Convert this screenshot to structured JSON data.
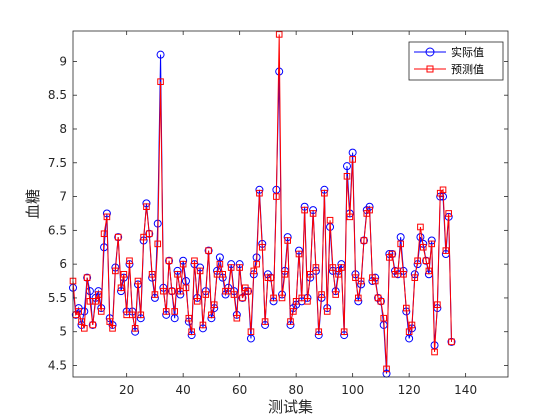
{
  "chart_data": {
    "type": "line",
    "title": "",
    "xlabel": "测试集",
    "ylabel": "血糖",
    "xlim": [
      1,
      155
    ],
    "ylim": [
      4.33,
      9.45
    ],
    "xticks": [
      20,
      40,
      60,
      80,
      100,
      120,
      140
    ],
    "yticks": [
      4.5,
      5,
      5.5,
      6,
      6.5,
      7,
      7.5,
      8,
      8.5,
      9
    ],
    "grid": false,
    "legend_position": "top-right",
    "colors": {
      "actual": "#0000ff",
      "predicted": "#ff0000"
    },
    "series": [
      {
        "name": "实际值",
        "marker": "circle",
        "values": [
          5.65,
          5.25,
          5.35,
          5.1,
          5.3,
          5.8,
          5.6,
          5.1,
          5.5,
          5.6,
          5.35,
          6.25,
          6.75,
          5.2,
          5.1,
          5.95,
          6.4,
          5.6,
          5.8,
          5.3,
          6.0,
          5.3,
          5.0,
          5.7,
          5.2,
          6.35,
          6.9,
          6.45,
          5.8,
          5.5,
          6.6,
          9.1,
          5.65,
          5.25,
          6.05,
          5.6,
          5.2,
          5.9,
          5.55,
          6.05,
          5.75,
          5.15,
          4.95,
          6.0,
          5.5,
          5.95,
          5.05,
          5.6,
          6.2,
          5.2,
          5.35,
          5.9,
          6.1,
          5.8,
          5.55,
          5.65,
          6.0,
          5.6,
          5.25,
          6.0,
          5.5,
          5.6,
          5.6,
          4.9,
          5.85,
          6.1,
          7.1,
          6.3,
          5.1,
          5.85,
          5.8,
          5.45,
          7.1,
          8.85,
          5.55,
          5.9,
          6.4,
          5.1,
          5.35,
          5.4,
          6.2,
          5.45,
          6.85,
          5.5,
          5.8,
          6.8,
          5.9,
          4.95,
          5.5,
          7.1,
          5.35,
          6.55,
          5.9,
          5.6,
          5.9,
          6.0,
          4.95,
          7.45,
          6.75,
          7.65,
          5.85,
          5.45,
          5.7,
          6.35,
          6.8,
          6.85,
          5.75,
          5.8,
          5.5,
          5.45,
          5.1,
          4.38,
          6.15,
          6.15,
          5.9,
          5.85,
          6.4,
          5.9,
          5.3,
          4.9,
          5.05,
          5.85,
          6.0,
          6.4,
          6.3,
          6.05,
          5.85,
          6.35,
          4.8,
          5.35,
          7.0,
          7.0,
          6.15,
          6.7,
          4.85
        ]
      },
      {
        "name": "预测值",
        "marker": "square",
        "values": [
          5.75,
          5.25,
          5.3,
          5.15,
          5.05,
          5.8,
          5.45,
          5.1,
          5.45,
          5.55,
          5.3,
          6.45,
          6.7,
          5.15,
          5.05,
          5.9,
          6.4,
          5.65,
          5.85,
          5.25,
          6.05,
          5.25,
          5.05,
          5.75,
          5.25,
          6.4,
          6.85,
          6.45,
          5.85,
          5.55,
          6.3,
          8.7,
          5.6,
          5.3,
          6.05,
          5.6,
          5.3,
          5.85,
          5.6,
          6.0,
          5.65,
          5.2,
          5.0,
          6.05,
          5.45,
          5.9,
          5.1,
          5.55,
          6.2,
          5.25,
          5.4,
          5.85,
          6.0,
          5.85,
          5.6,
          5.6,
          5.95,
          5.55,
          5.2,
          5.95,
          5.5,
          5.65,
          5.6,
          5.0,
          5.9,
          6.0,
          7.05,
          6.25,
          5.15,
          5.8,
          5.8,
          5.5,
          7.0,
          9.4,
          5.5,
          5.85,
          6.35,
          5.15,
          5.3,
          5.45,
          6.15,
          5.5,
          6.8,
          5.45,
          5.85,
          6.75,
          5.95,
          5.0,
          5.55,
          7.05,
          5.3,
          6.65,
          5.95,
          5.55,
          5.85,
          5.95,
          5.0,
          7.3,
          6.7,
          7.55,
          5.8,
          5.5,
          5.75,
          6.35,
          6.75,
          6.8,
          5.8,
          5.75,
          5.5,
          5.45,
          5.2,
          4.45,
          6.1,
          6.15,
          5.85,
          5.9,
          6.3,
          5.85,
          5.35,
          5.0,
          5.1,
          5.8,
          6.05,
          6.55,
          6.25,
          6.05,
          5.9,
          6.3,
          4.7,
          5.4,
          7.05,
          7.1,
          6.2,
          6.75,
          4.85
        ]
      }
    ]
  }
}
